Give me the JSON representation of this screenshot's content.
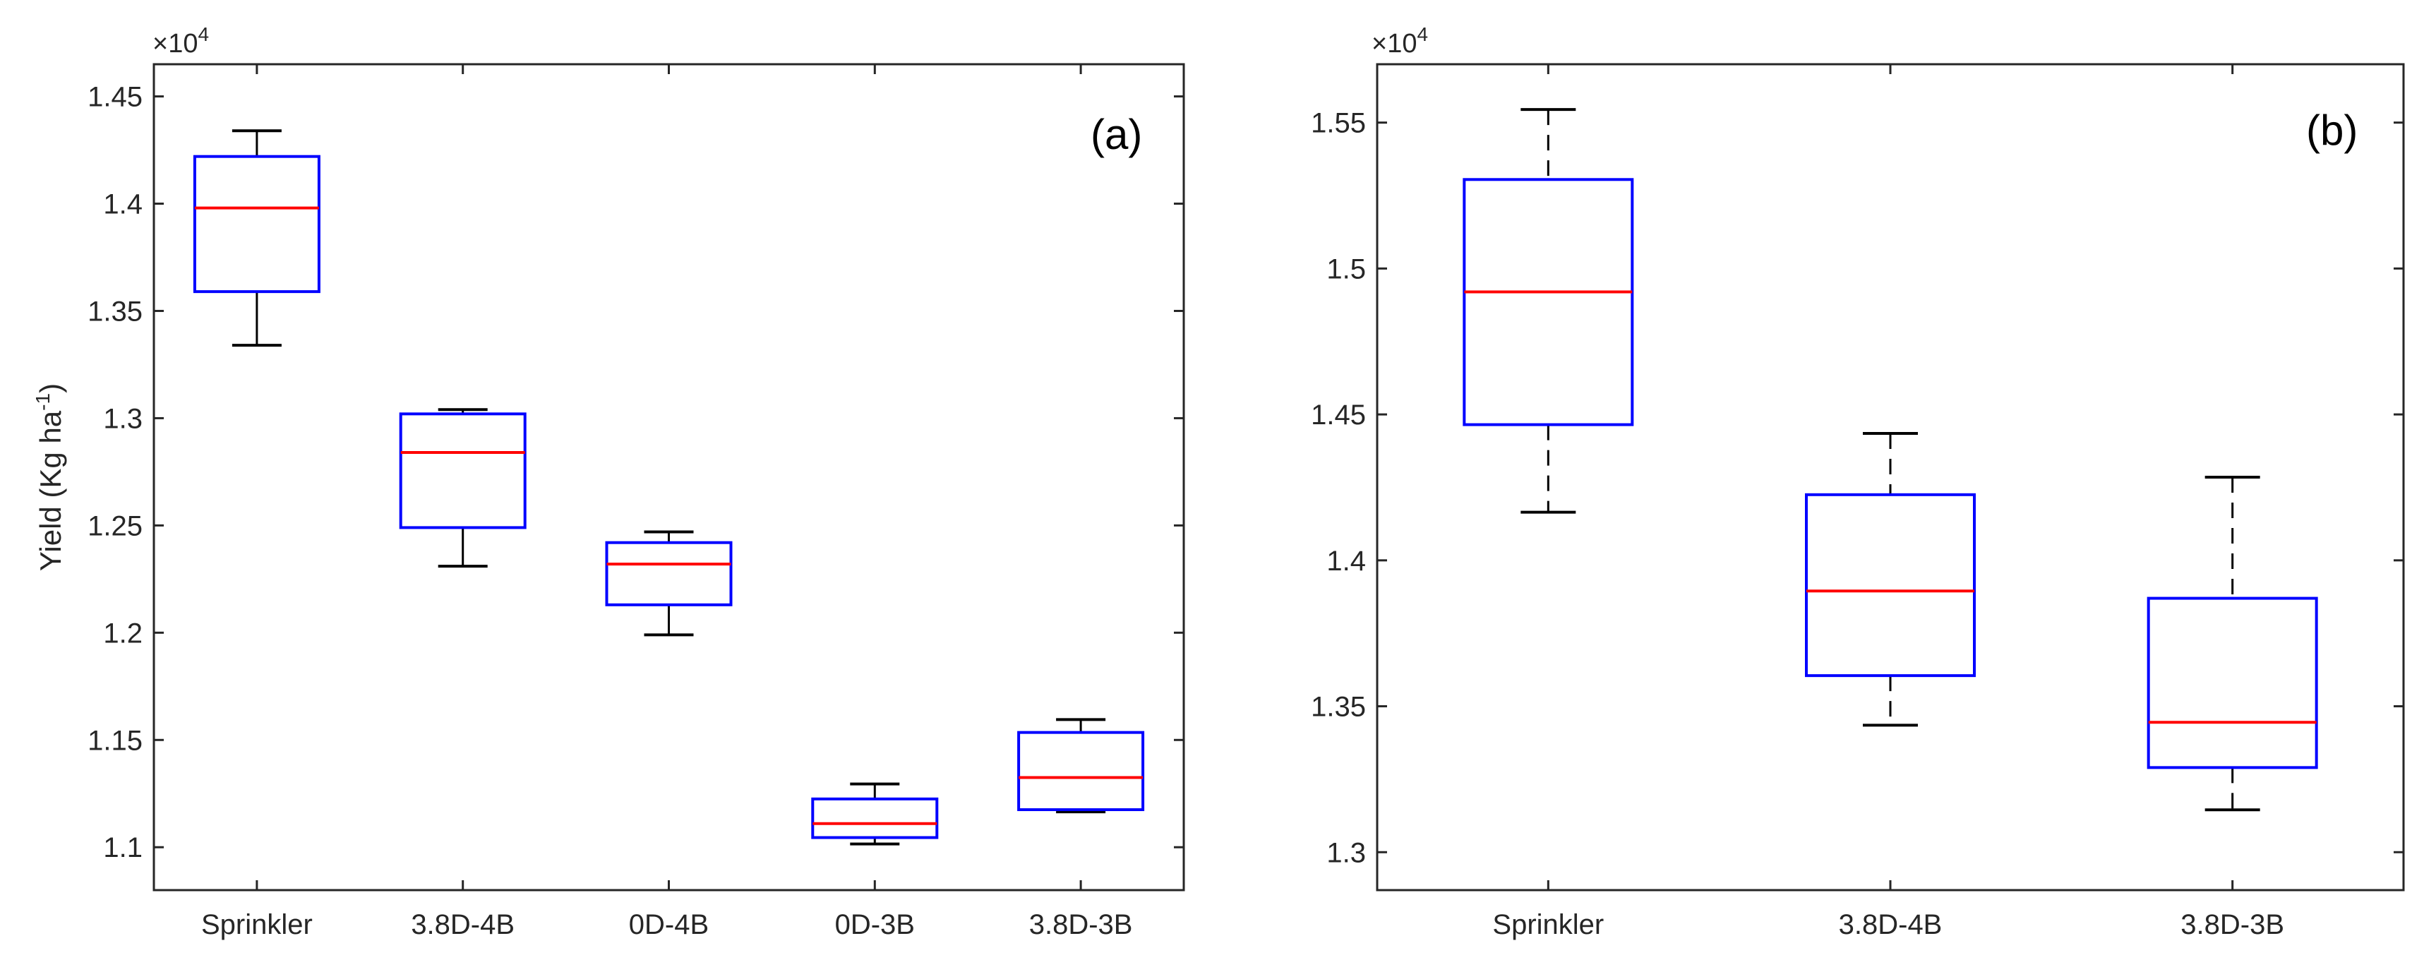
{
  "chart_data": [
    {
      "type": "box",
      "panel_label": "(a)",
      "ylabel_base": "Yield (Kg ha",
      "ylabel_exp": "-1",
      "ylabel_close": ")",
      "multiplier_base": "×10",
      "multiplier_exp": "4",
      "ylim": [
        1.08,
        1.465
      ],
      "yticks": [
        {
          "value": 1.1,
          "label": "1.1"
        },
        {
          "value": 1.15,
          "label": "1.15"
        },
        {
          "value": 1.2,
          "label": "1.2"
        },
        {
          "value": 1.25,
          "label": "1.25"
        },
        {
          "value": 1.3,
          "label": "1.3"
        },
        {
          "value": 1.35,
          "label": "1.35"
        },
        {
          "value": 1.4,
          "label": "1.4"
        },
        {
          "value": 1.45,
          "label": "1.45"
        }
      ],
      "whisker_style": "solid",
      "categories": [
        "Sprinkler",
        "3.8D-4B",
        "0D-4B",
        "0D-3B",
        "3.8D-3B"
      ],
      "boxes": [
        {
          "min": 1.334,
          "q1": 1.359,
          "median": 1.398,
          "q3": 1.422,
          "max": 1.434
        },
        {
          "min": 1.231,
          "q1": 1.249,
          "median": 1.284,
          "q3": 1.302,
          "max": 1.304
        },
        {
          "min": 1.199,
          "q1": 1.213,
          "median": 1.232,
          "q3": 1.242,
          "max": 1.247
        },
        {
          "min": 1.1015,
          "q1": 1.1045,
          "median": 1.111,
          "q3": 1.1225,
          "max": 1.1295
        },
        {
          "min": 1.1165,
          "q1": 1.1175,
          "median": 1.1325,
          "q3": 1.1535,
          "max": 1.1595
        }
      ]
    },
    {
      "type": "box",
      "panel_label": "(b)",
      "multiplier_base": "×10",
      "multiplier_exp": "4",
      "ylim": [
        1.287,
        1.57
      ],
      "yticks": [
        {
          "value": 1.3,
          "label": "1.3"
        },
        {
          "value": 1.35,
          "label": "1.35"
        },
        {
          "value": 1.4,
          "label": "1.4"
        },
        {
          "value": 1.45,
          "label": "1.45"
        },
        {
          "value": 1.5,
          "label": "1.5"
        },
        {
          "value": 1.55,
          "label": "1.55"
        }
      ],
      "whisker_style": "dashed",
      "categories": [
        "Sprinkler",
        "3.8D-4B",
        "3.8D-3B"
      ],
      "boxes": [
        {
          "min": 1.4165,
          "q1": 1.4465,
          "median": 1.492,
          "q3": 1.5305,
          "max": 1.5545
        },
        {
          "min": 1.3435,
          "q1": 1.3605,
          "median": 1.3895,
          "q3": 1.4225,
          "max": 1.4435
        },
        {
          "min": 1.3145,
          "q1": 1.329,
          "median": 1.3445,
          "q3": 1.387,
          "max": 1.4285
        }
      ]
    }
  ],
  "colors": {
    "box": "#0000FF",
    "median": "#FF0000",
    "whisker": "#000000",
    "axis": "#262626"
  }
}
